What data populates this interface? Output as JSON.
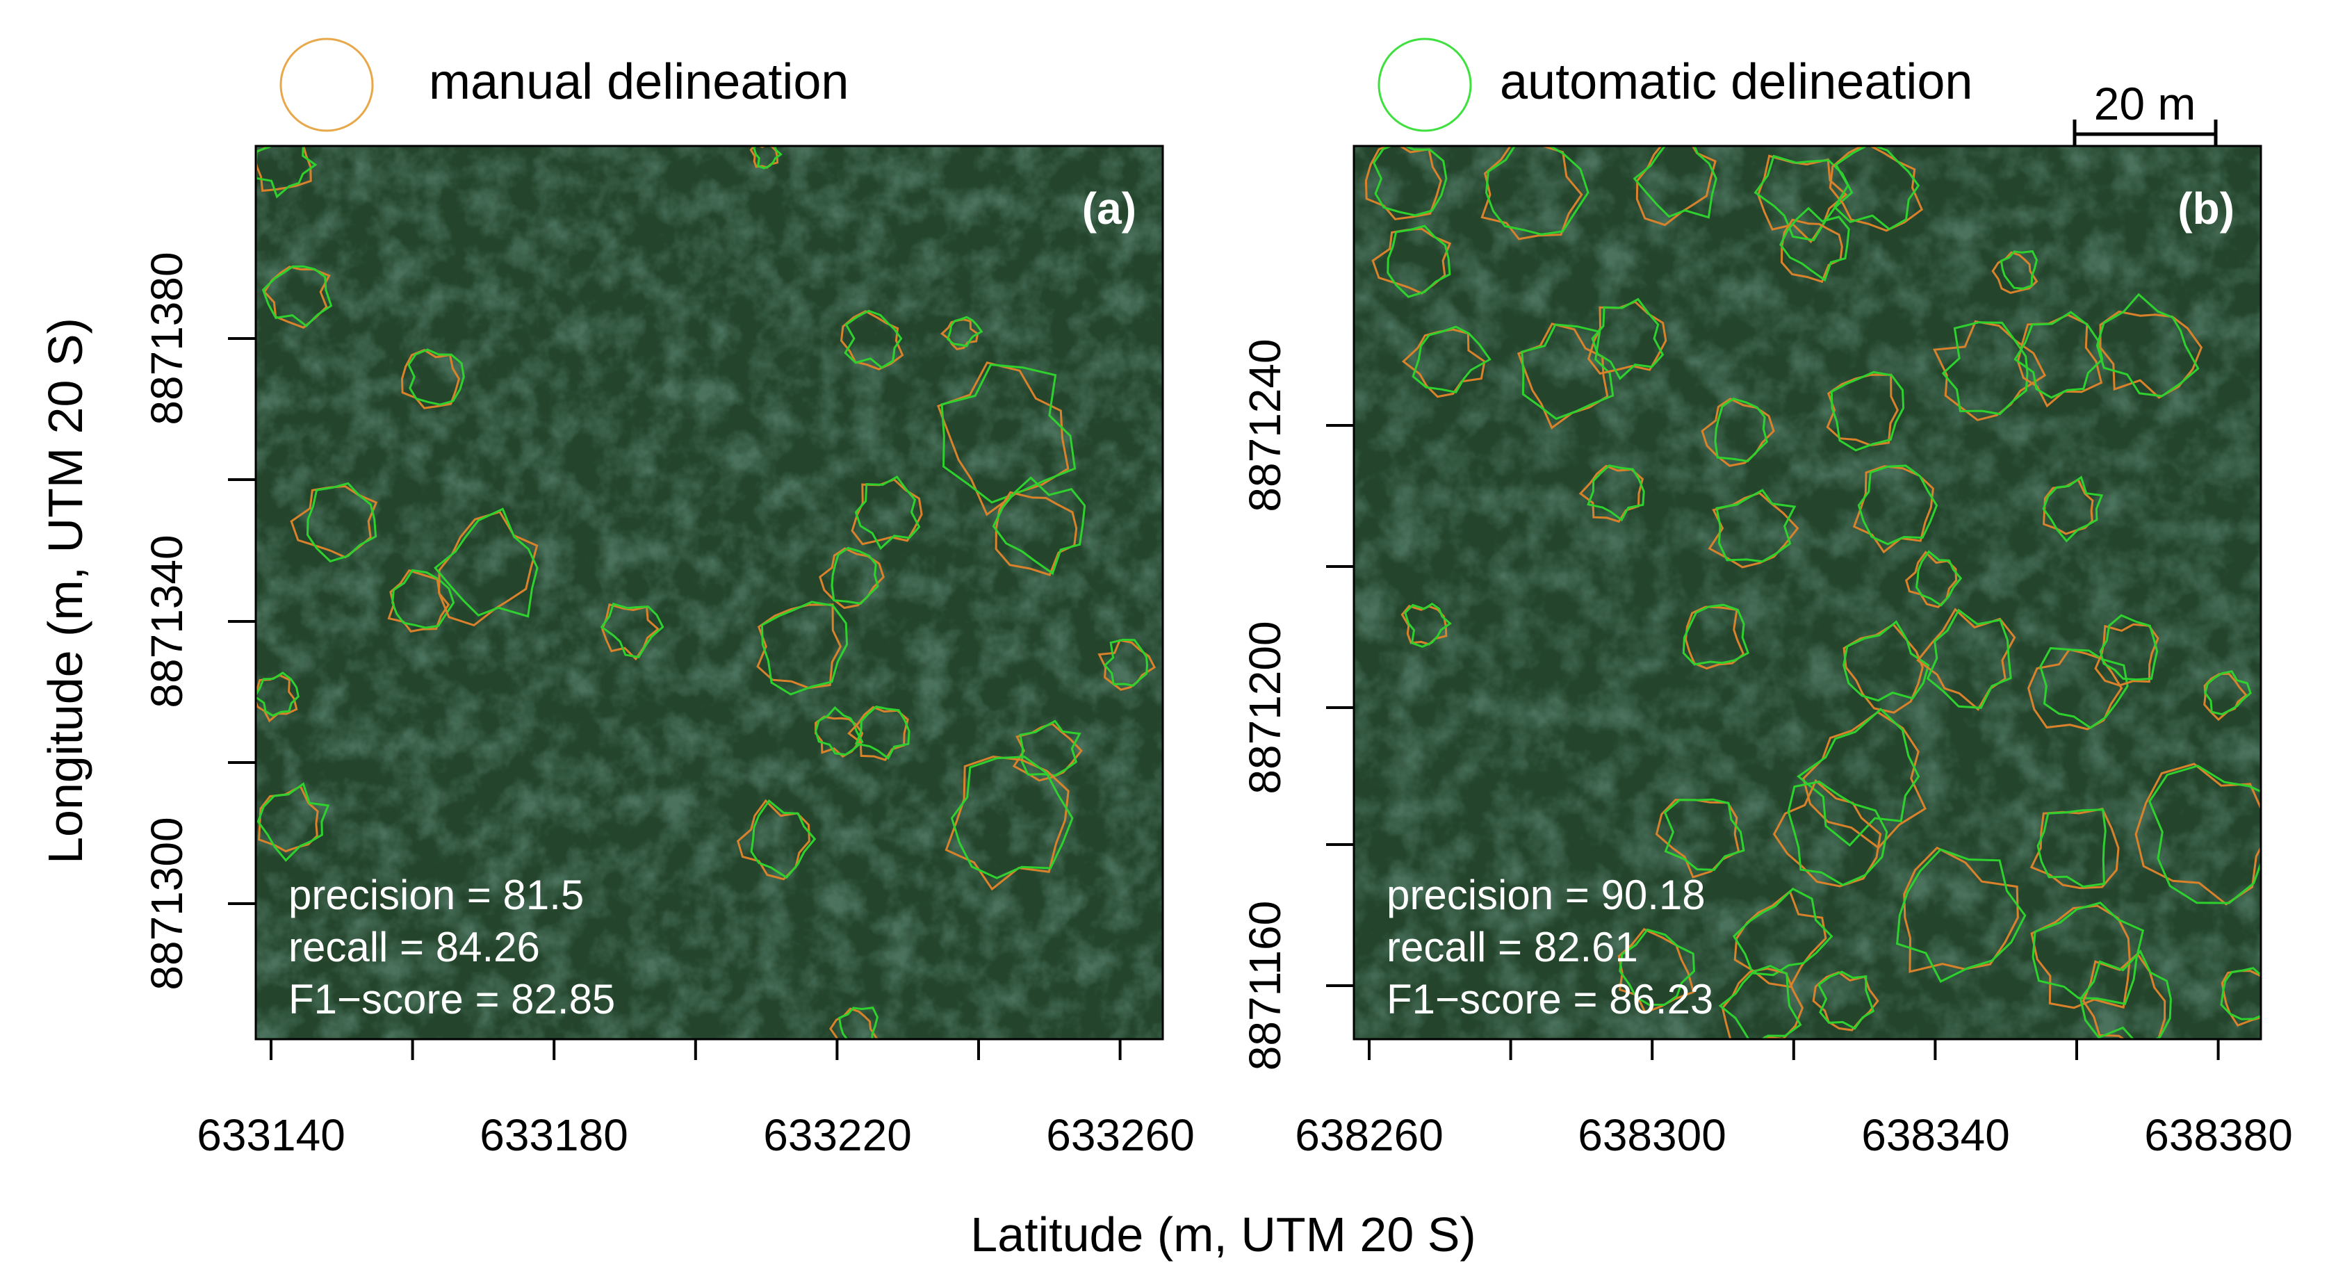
{
  "legend": {
    "manual": {
      "label": "manual delineation",
      "color": "#e8a84a"
    },
    "automatic": {
      "label": "automatic delineation",
      "color": "#3ee03e"
    }
  },
  "scale_bar": {
    "label": "20 m",
    "length_m": 20
  },
  "colors": {
    "canopy_dark": "#16301f",
    "canopy_mid": "#24452c",
    "canopy_light": "#3c6a40",
    "manual_outline": "#d9822b",
    "auto_outline": "#2ed12e",
    "stats_text": "#ffffff"
  },
  "axes": {
    "ylabel": "Longitude (m, UTM 20 S)",
    "xlabel": "Latitude (m, UTM 20 S)"
  },
  "panels": [
    {
      "tag": "(a)",
      "x_ticks": [
        633140,
        633160,
        633180,
        633200,
        633220,
        633240,
        633260
      ],
      "x_labels": [
        "633140",
        "633180",
        "633220",
        "633260"
      ],
      "y_ticks": [
        8871300,
        8871320,
        8871340,
        8871360,
        8871380
      ],
      "y_labels": [
        "8871300",
        "8871340",
        "8871380"
      ],
      "stats": {
        "precision": "precision = 81.5",
        "recall": "recall = 84.26",
        "f1": "F1−score = 82.85"
      }
    },
    {
      "tag": "(b)",
      "x_ticks": [
        638260,
        638280,
        638300,
        638320,
        638340,
        638360,
        638380
      ],
      "x_labels": [
        "638260",
        "638300",
        "638340",
        "638380"
      ],
      "y_ticks": [
        8871160,
        8871180,
        8871200,
        8871220,
        8871240
      ],
      "y_labels": [
        "8871160",
        "8871200",
        "8871240"
      ],
      "stats": {
        "precision": "precision = 90.18",
        "recall": "recall = 82.61",
        "f1": "F1−score = 86.23"
      }
    }
  ]
}
